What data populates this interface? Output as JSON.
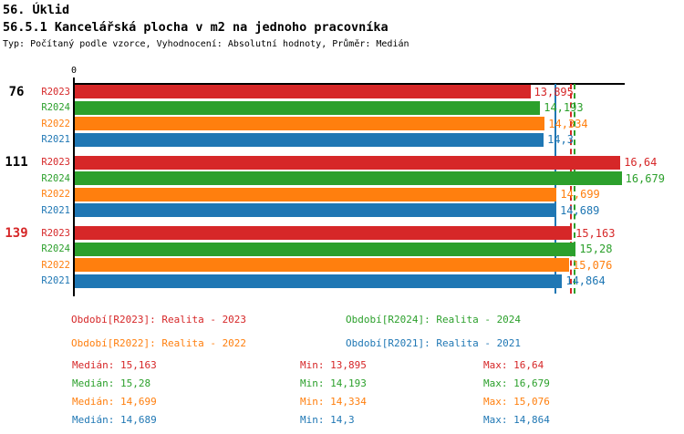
{
  "header": {
    "title": "56. Úklid",
    "subtitle": "56.5.1 Kancelářská plocha v m2 na jednoho pracovníka",
    "meta": "Typ: Počítaný podle vzorce, Vyhodnocení: Absolutní hodnoty, Průměr: Medián"
  },
  "colors": {
    "R2023": "#d62728",
    "R2024": "#2ca02c",
    "R2022": "#ff7f0e",
    "R2021": "#1f77b4",
    "axis": "#000000",
    "group_label_default": "#000000",
    "group_label_highlight": "#d62728"
  },
  "chart_data": {
    "type": "bar",
    "orientation": "horizontal",
    "x_origin_label": "0",
    "xlim": [
      0,
      16.8
    ],
    "grid": false,
    "series_order": [
      "R2023",
      "R2024",
      "R2022",
      "R2021"
    ],
    "groups": [
      {
        "label": "76",
        "highlighted": false,
        "bars": [
          {
            "series": "R2023",
            "value": 13.895,
            "display": "13,895"
          },
          {
            "series": "R2024",
            "value": 14.193,
            "display": "14,193"
          },
          {
            "series": "R2022",
            "value": 14.334,
            "display": "14,334"
          },
          {
            "series": "R2021",
            "value": 14.3,
            "display": "14,3"
          }
        ]
      },
      {
        "label": "111",
        "highlighted": false,
        "bars": [
          {
            "series": "R2023",
            "value": 16.64,
            "display": "16,64"
          },
          {
            "series": "R2024",
            "value": 16.679,
            "display": "16,679"
          },
          {
            "series": "R2022",
            "value": 14.699,
            "display": "14,699"
          },
          {
            "series": "R2021",
            "value": 14.689,
            "display": "14,689"
          }
        ]
      },
      {
        "label": "139",
        "highlighted": true,
        "bars": [
          {
            "series": "R2023",
            "value": 15.163,
            "display": "15,163"
          },
          {
            "series": "R2024",
            "value": 15.28,
            "display": "15,28"
          },
          {
            "series": "R2022",
            "value": 15.076,
            "display": "15,076"
          },
          {
            "series": "R2021",
            "value": 14.864,
            "display": "14,864"
          }
        ]
      }
    ],
    "median_lines": [
      {
        "series": "R2023",
        "value": 15.163,
        "style": "dashed"
      },
      {
        "series": "R2024",
        "value": 15.28,
        "style": "dashed"
      },
      {
        "series": "R2022",
        "value": 14.699,
        "style": "solid"
      },
      {
        "series": "R2021",
        "value": 14.689,
        "style": "solid"
      }
    ]
  },
  "legend": [
    {
      "series": "R2023",
      "text": "Období[R2023]: Realita - 2023"
    },
    {
      "series": "R2024",
      "text": "Období[R2024]: Realita - 2024"
    },
    {
      "series": "R2022",
      "text": "Období[R2022]: Realita - 2022"
    },
    {
      "series": "R2021",
      "text": "Období[R2021]: Realita - 2021"
    }
  ],
  "stats": [
    {
      "series": "R2023",
      "median": "Medián: 15,163",
      "min": "Min: 13,895",
      "max": "Max: 16,64"
    },
    {
      "series": "R2024",
      "median": "Medián: 15,28",
      "min": "Min: 14,193",
      "max": "Max: 16,679"
    },
    {
      "series": "R2022",
      "median": "Medián: 14,699",
      "min": "Min: 14,334",
      "max": "Max: 15,076"
    },
    {
      "series": "R2021",
      "median": "Medián: 14,689",
      "min": "Min: 14,3",
      "max": "Max: 14,864"
    }
  ]
}
